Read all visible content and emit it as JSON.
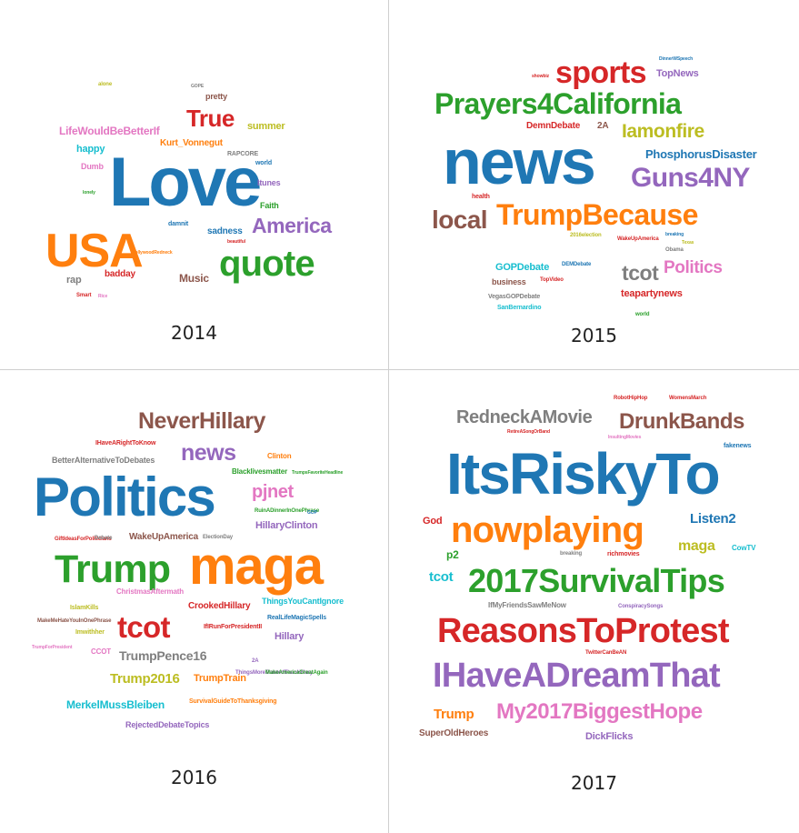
{
  "palette": {
    "blue": "#1f77b4",
    "orange": "#ff7f0e",
    "green": "#2ca02c",
    "red": "#d62728",
    "purple": "#9467bd",
    "brown": "#8c564b",
    "pink": "#e377c2",
    "gray": "#7f7f7f",
    "olive": "#bcbd22",
    "cyan": "#17becf"
  },
  "panels": [
    {
      "year": "2014",
      "words": [
        "alone",
        "GOPE",
        "pretty",
        "True",
        "summer",
        "LifeWouldBeBetterIf",
        "happy",
        "Kurt_Vonnegut",
        "Dumb",
        "RAPCORE",
        "Love",
        "world",
        "Itunes",
        "Faith",
        "lonely",
        "America",
        "damnit",
        "sadness",
        "beautiful",
        "USA",
        "quote",
        "HollywoodRedneck",
        "badday",
        "rap",
        "Music",
        "Smart",
        "Rice"
      ]
    },
    {
      "year": "2015",
      "words": [
        "DinnerWSpeech",
        "sports",
        "showbiz",
        "TopNews",
        "Prayers4California",
        "DemnDebate",
        "2A",
        "Iamonfire",
        "news",
        "PhosphorusDisaster",
        "Guns4NY",
        "health",
        "local",
        "TrumpBecause",
        "2016election",
        "WakeUpAmerica",
        "breaking",
        "Obama",
        "Texas",
        "GOPDebate",
        "DEMDebate",
        "tcot",
        "Politics",
        "business",
        "TopVideo",
        "teapartynews",
        "VegasGOPDebate",
        "SanBernardino",
        "world"
      ]
    },
    {
      "year": "2016",
      "words": [
        "NeverHillary",
        "IHaveARightToKnow",
        "news",
        "Clinton",
        "BetterAlternativeToDebates",
        "Blacklivesmatter",
        "TrumpsFavoriteHeadline",
        "pjnet",
        "Politics",
        "RuinADinnerInOnePhrase",
        "HillaryClinton",
        "GOP",
        "GiftIdeasForPoliticians",
        "Debate",
        "WakeUpAmerica",
        "ElectionDay",
        "Trump",
        "maga",
        "IslamKills",
        "ChristmasAftermath",
        "CrookedHillary",
        "ThingsYouCantIgnore",
        "RealLifeMagicSpells",
        "MakeMeHateYouInOnePhrase",
        "tcot",
        "IfIRunForPresidentII",
        "Imwithher",
        "Hillary",
        "TrumpForPresident",
        "CCOT",
        "TrumpPence16",
        "2A",
        "ThingsMoreTrustedThanHillary",
        "Trump2016",
        "TrumpTrain",
        "MakeAmericaGreatAgain",
        "SurvivalGuideToThanksgiving",
        "MerkelMussBleiben",
        "RejectedDebateTopics"
      ]
    },
    {
      "year": "2017",
      "words": [
        "RobotHipHop",
        "WomensMarch",
        "RedneckAMovie",
        "DrunkBands",
        "RetireASongOrBand",
        "InsultingMovies",
        "fakenews",
        "ItsRiskyTo",
        "God",
        "nowplaying",
        "Listen2",
        "maga",
        "CowTV",
        "p2",
        "breaking",
        "richmovies",
        "tcot",
        "2017SurvivalTips",
        "IfMyFriendsSawMeNow",
        "ConspiracySongs",
        "ReasonsToProtest",
        "TwitterCanBeAN",
        "IHaveADreamThat",
        "Trump",
        "My2017BiggestHope",
        "SuperOldHeroes",
        "DickFlicks"
      ]
    }
  ]
}
